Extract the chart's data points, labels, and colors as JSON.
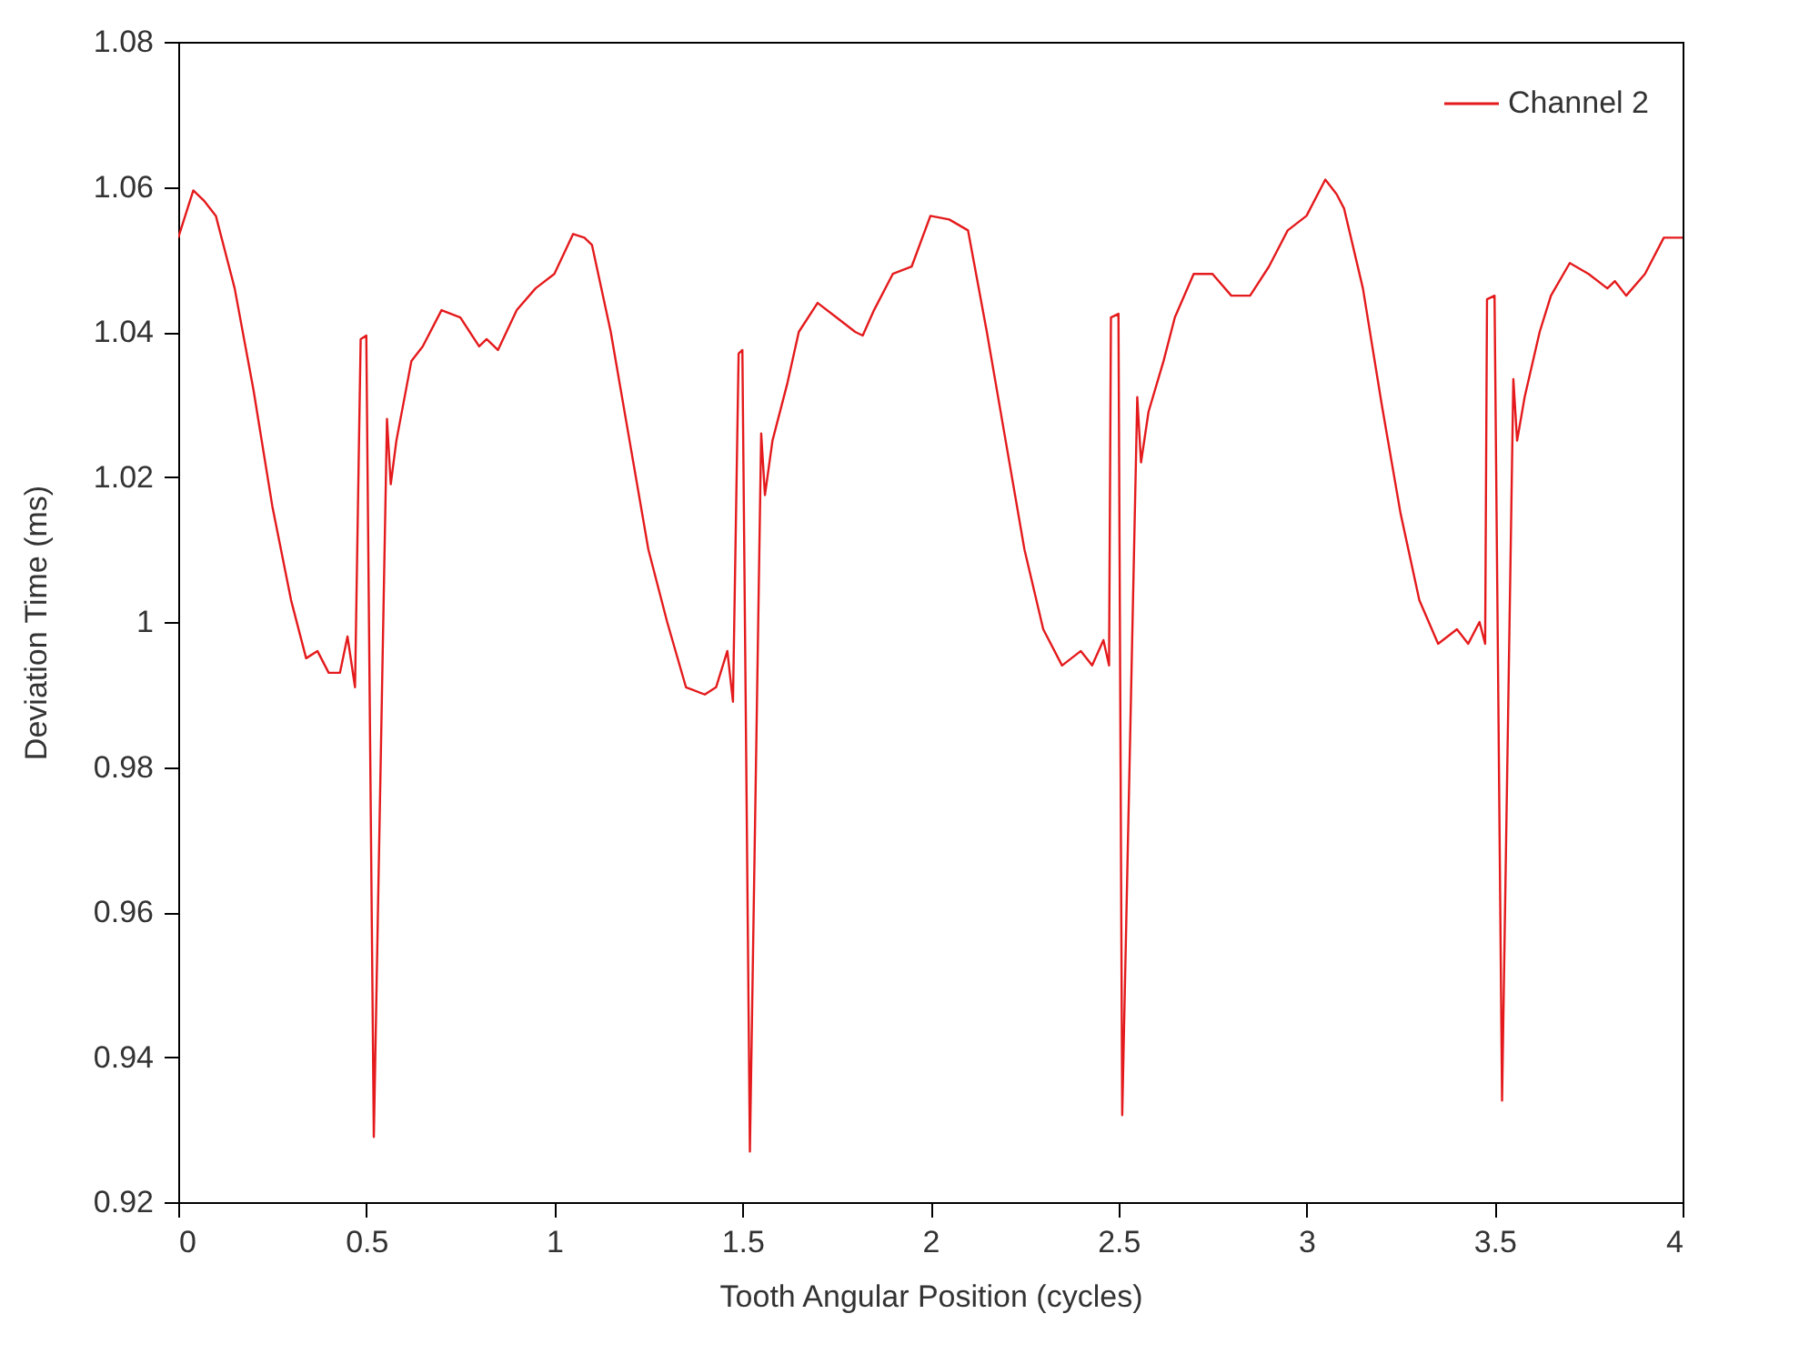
{
  "chart_data": {
    "type": "line",
    "xlabel": "Tooth Angular Position (cycles)",
    "ylabel": "Deviation Time (ms)",
    "xlim": [
      0,
      4
    ],
    "xticks": [
      0,
      0.5,
      1,
      1.5,
      2,
      2.5,
      3,
      3.5,
      4
    ],
    "ylim": [
      0.92,
      1.08
    ],
    "yticks": [
      0.92,
      0.94,
      0.96,
      0.98,
      1,
      1.02,
      1.04,
      1.06,
      1.08
    ],
    "grid": false,
    "legend": "top right",
    "line_style": "solid",
    "marker": "none",
    "series": [
      {
        "name": "Channel 2",
        "color": "#e41a1c",
        "x": [
          0,
          0.04,
          0.07,
          0.1,
          0.15,
          0.2,
          0.25,
          0.3,
          0.34,
          0.37,
          0.4,
          0.43,
          0.45,
          0.47,
          0.485,
          0.5,
          0.52,
          0.555,
          0.565,
          0.58,
          0.62,
          0.65,
          0.7,
          0.75,
          0.8,
          0.82,
          0.85,
          0.9,
          0.95,
          1.0,
          1.05,
          1.08,
          1.1,
          1.15,
          1.2,
          1.25,
          1.3,
          1.35,
          1.4,
          1.43,
          1.46,
          1.475,
          1.49,
          1.5,
          1.52,
          1.55,
          1.56,
          1.58,
          1.62,
          1.65,
          1.7,
          1.75,
          1.8,
          1.82,
          1.85,
          1.9,
          1.95,
          2.0,
          2.05,
          2.1,
          2.15,
          2.2,
          2.25,
          2.3,
          2.35,
          2.4,
          2.43,
          2.46,
          2.475,
          2.48,
          2.5,
          2.51,
          2.55,
          2.56,
          2.58,
          2.62,
          2.65,
          2.7,
          2.75,
          2.8,
          2.85,
          2.9,
          2.95,
          3.0,
          3.05,
          3.08,
          3.1,
          3.15,
          3.2,
          3.25,
          3.3,
          3.35,
          3.4,
          3.43,
          3.46,
          3.475,
          3.48,
          3.5,
          3.52,
          3.55,
          3.56,
          3.58,
          3.62,
          3.65,
          3.7,
          3.75,
          3.8,
          3.82,
          3.85,
          3.9,
          3.95,
          4.0
        ],
        "values": [
          1.053,
          1.0595,
          1.058,
          1.056,
          1.046,
          1.032,
          1.016,
          1.003,
          0.995,
          0.996,
          0.993,
          0.993,
          0.998,
          0.991,
          1.039,
          1.0395,
          0.929,
          1.028,
          1.019,
          1.025,
          1.036,
          1.038,
          1.043,
          1.042,
          1.038,
          1.039,
          1.0375,
          1.043,
          1.046,
          1.048,
          1.0535,
          1.053,
          1.052,
          1.04,
          1.025,
          1.01,
          1.0,
          0.991,
          0.99,
          0.991,
          0.996,
          0.989,
          1.037,
          1.0375,
          0.927,
          1.026,
          1.0175,
          1.025,
          1.033,
          1.04,
          1.044,
          1.042,
          1.04,
          1.0395,
          1.043,
          1.048,
          1.049,
          1.056,
          1.0555,
          1.054,
          1.04,
          1.025,
          1.01,
          0.999,
          0.994,
          0.996,
          0.994,
          0.9975,
          0.994,
          1.042,
          1.0425,
          0.932,
          1.031,
          1.022,
          1.029,
          1.036,
          1.042,
          1.048,
          1.048,
          1.045,
          1.045,
          1.049,
          1.054,
          1.056,
          1.061,
          1.059,
          1.057,
          1.046,
          1.03,
          1.015,
          1.003,
          0.997,
          0.999,
          0.997,
          1.0,
          0.997,
          1.0445,
          1.045,
          0.934,
          1.0335,
          1.025,
          1.031,
          1.04,
          1.045,
          1.0495,
          1.048,
          1.046,
          1.047,
          1.045,
          1.048,
          1.053,
          1.053
        ]
      }
    ]
  }
}
